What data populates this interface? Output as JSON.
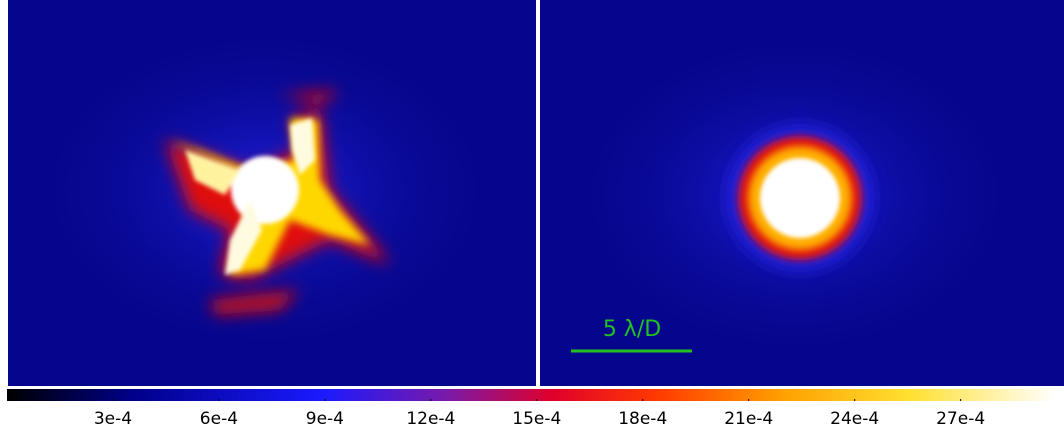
{
  "scale_bar": {
    "label": "5 λ/D"
  },
  "colorbar": {
    "range": [
      0,
      0.00297
    ],
    "ticks": [
      {
        "value": 0.0003,
        "label": "3e-4"
      },
      {
        "value": 0.0006,
        "label": "6e-4"
      },
      {
        "value": 0.0009,
        "label": "9e-4"
      },
      {
        "value": 0.0012,
        "label": "12e-4"
      },
      {
        "value": 0.0015,
        "label": "15e-4"
      },
      {
        "value": 0.0018,
        "label": "18e-4"
      },
      {
        "value": 0.0021,
        "label": "21e-4"
      },
      {
        "value": 0.0024,
        "label": "24e-4"
      },
      {
        "value": 0.0027,
        "label": "27e-4"
      }
    ]
  }
}
